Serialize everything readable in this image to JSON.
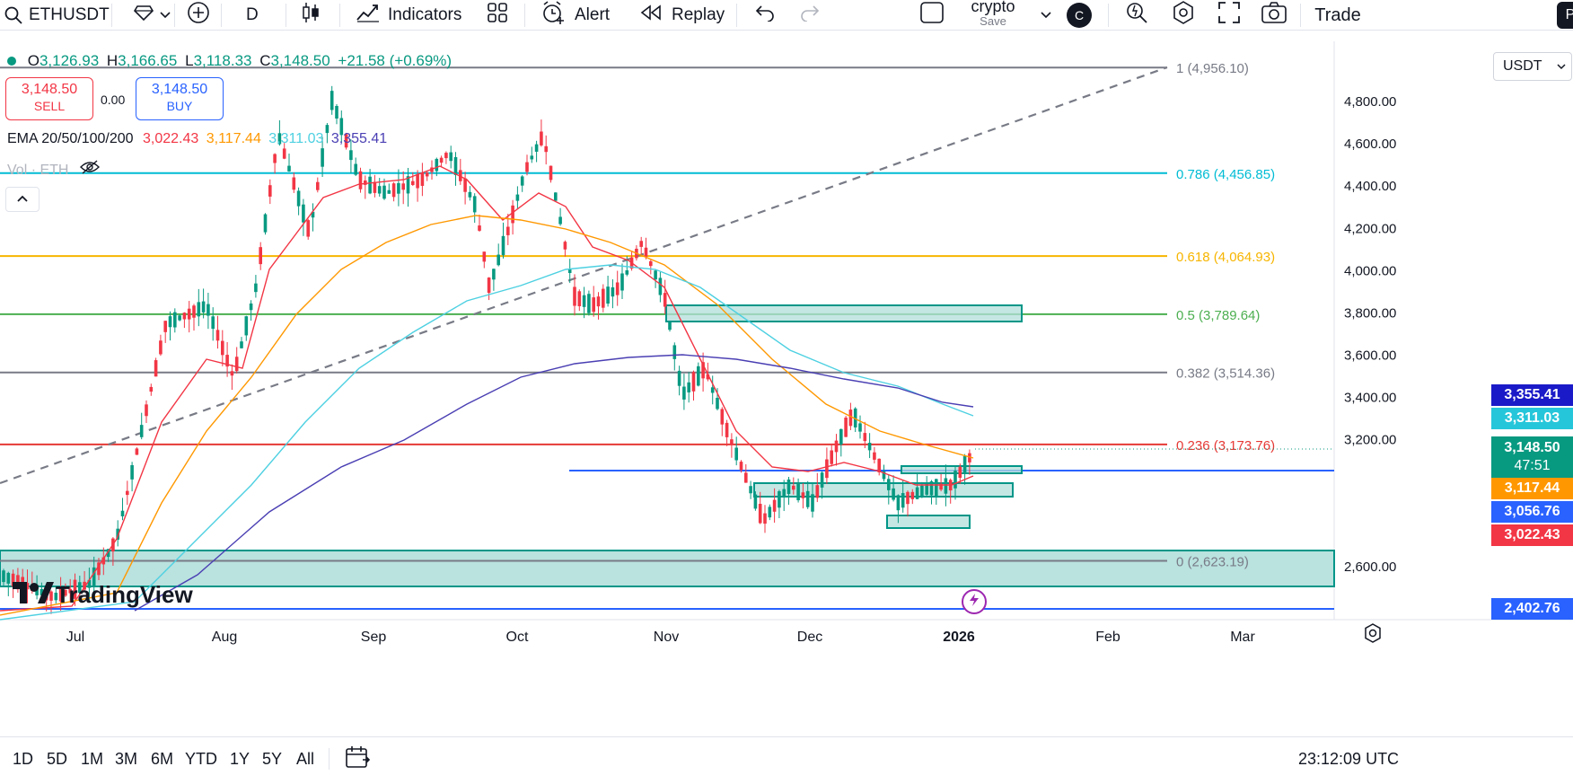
{
  "toolbar": {
    "symbol": "ETHUSDT",
    "interval": "D",
    "indicators_label": "Indicators",
    "alert_label": "Alert",
    "replay_label": "Replay",
    "layout_name": "crypto",
    "layout_save": "Save",
    "avatar_letter": "C",
    "trade_label": "Trade",
    "profile_letter": "P"
  },
  "legend": {
    "o_label": "O",
    "o_value": "3,126.93",
    "h_label": "H",
    "h_value": "3,166.65",
    "l_label": "L",
    "l_value": "3,118.33",
    "c_label": "C",
    "c_value": "3,148.50",
    "change": "+21.58 (+0.69%)",
    "sell_price": "3,148.50",
    "sell_label": "SELL",
    "spread": "0.00",
    "buy_price": "3,148.50",
    "buy_label": "BUY",
    "ema_label": "EMA 20/50/100/200",
    "ema20": "3,022.43",
    "ema50": "3,117.44",
    "ema100": "3,311.03",
    "ema200": "3,355.41",
    "vol_label": "Vol · ETH",
    "collapse_icon": "chevron-up-icon"
  },
  "colors": {
    "up": "#089981",
    "down": "#f23645",
    "ema20": "#f23645",
    "ema50": "#ff9800",
    "ema100": "#4dd0e1",
    "ema200": "#4a3fb3",
    "fib1": "#787b86",
    "fib786": "#00bcd4",
    "fib618": "#f7b500",
    "fib5": "#4caf50",
    "fib382": "#787b86",
    "fib236": "#e53935",
    "fib0": "#787b86",
    "blue_line": "#2962ff",
    "zone": "#009688"
  },
  "fib": [
    {
      "label": "1 (4,956.10)",
      "price": 4956.1
    },
    {
      "label": "0.786 (4,456.85)",
      "price": 4456.85
    },
    {
      "label": "0.618 (4,064.93)",
      "price": 4064.93
    },
    {
      "label": "0.5 (3,789.64)",
      "price": 3789.64
    },
    {
      "label": "0.382 (3,514.36)",
      "price": 3514.36
    },
    {
      "label": "0.236 (3,173.76)",
      "price": 3173.76
    },
    {
      "label": "0 (2,623.19)",
      "price": 2623.19
    }
  ],
  "axis": {
    "currency": "USDT",
    "price_ticks": [
      "4,800.00",
      "4,600.00",
      "4,400.00",
      "4,200.00",
      "4,000.00",
      "3,800.00",
      "3,600.00",
      "3,400.00",
      "3,200.00",
      "2,600.00"
    ],
    "price_tick_values": [
      4800,
      4600,
      4400,
      4200,
      4000,
      3800,
      3600,
      3400,
      3200,
      2600
    ],
    "date_ticks": [
      "Jul",
      "Aug",
      "Sep",
      "Oct",
      "Nov",
      "Dec",
      "2026",
      "Feb",
      "Mar"
    ]
  },
  "price_tags": {
    "ema200": "3,355.41",
    "ema100": "3,311.03",
    "last": "3,148.50",
    "countdown": "47:51",
    "ema50": "3,117.44",
    "blue_line": "3,056.76",
    "ema20": "3,022.43",
    "bottom_line": "2,402.76"
  },
  "watermark": "TradingView",
  "bottom": {
    "timeframes": [
      "1D",
      "5D",
      "1M",
      "3M",
      "6M",
      "YTD",
      "1Y",
      "5Y",
      "All"
    ],
    "clock": "23:12:09 UTC"
  }
}
